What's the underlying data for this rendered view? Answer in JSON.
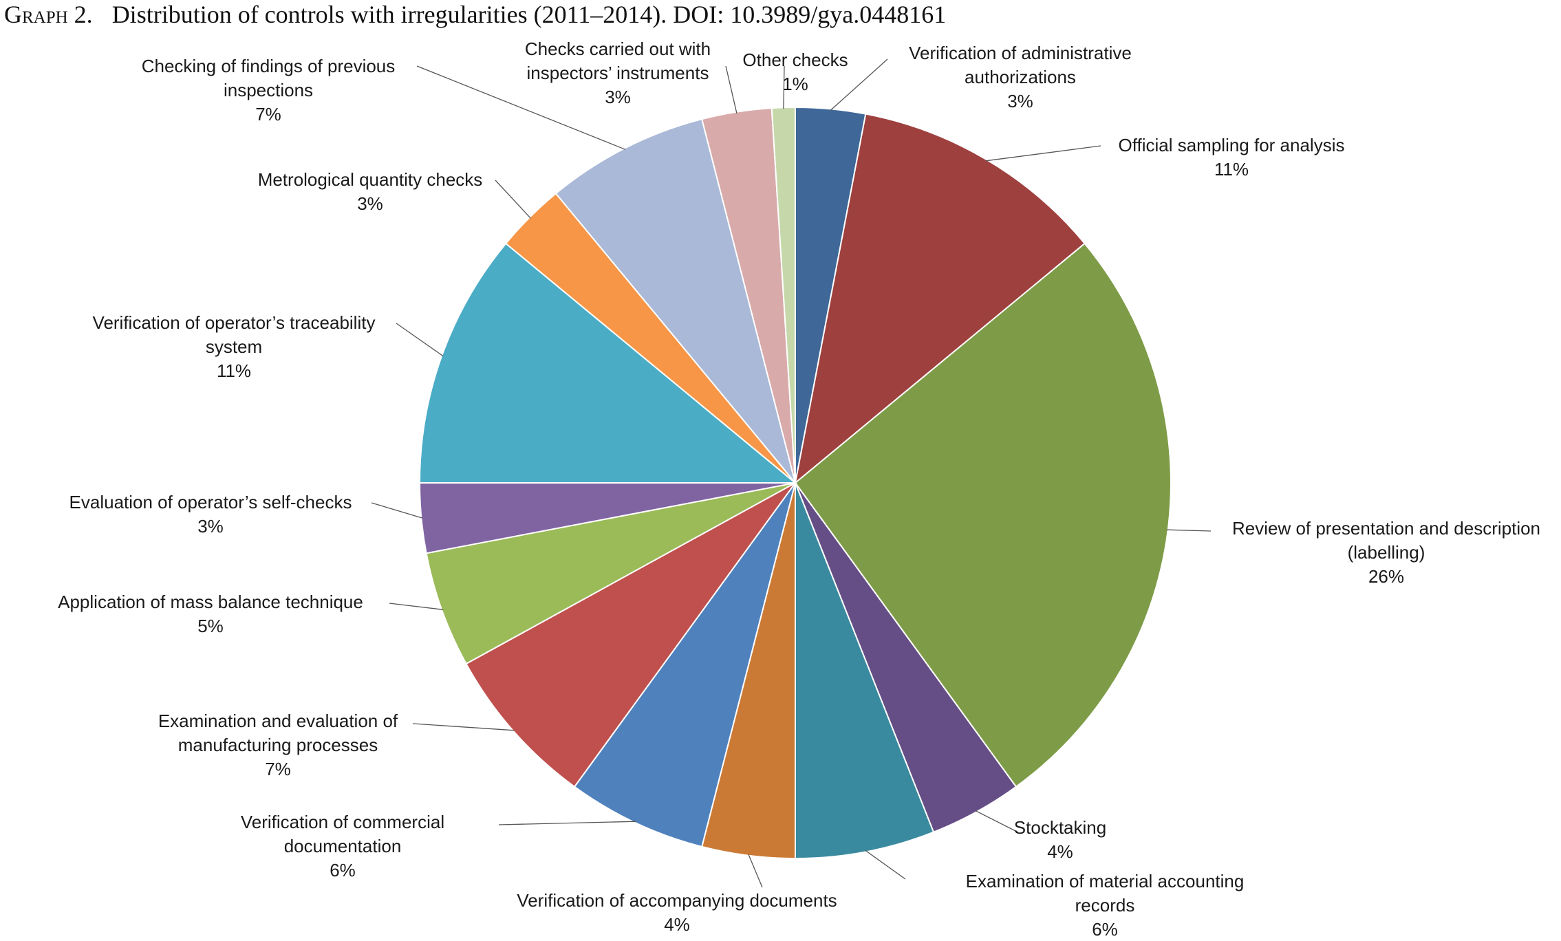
{
  "caption": {
    "label": "Graph 2.",
    "text": "Distribution of controls with irregularities (2011–2014). DOI: 10.3989/gya.0448161"
  },
  "chart_data": {
    "type": "pie",
    "unit": "%",
    "start": "12 o'clock",
    "direction": "clockwise",
    "slices": [
      {
        "label": [
          "Verification of administrative",
          "authorizations"
        ],
        "value": 3,
        "display": "3%",
        "color": "#3F6898"
      },
      {
        "label": [
          "Official sampling for analysis"
        ],
        "value": 11,
        "display": "11%",
        "color": "#9E403E"
      },
      {
        "label": [
          "Review of presentation and description",
          "(labelling)"
        ],
        "value": 26,
        "display": "26%",
        "color": "#7E9C47"
      },
      {
        "label": [
          "Stocktaking"
        ],
        "value": 4,
        "display": "4%",
        "color": "#654E85"
      },
      {
        "label": [
          "Examination of material accounting",
          "records"
        ],
        "value": 6,
        "display": "6%",
        "color": "#3A8A9F"
      },
      {
        "label": [
          "Verification of accompanying documents"
        ],
        "value": 4,
        "display": "4%",
        "color": "#CB7A35"
      },
      {
        "label": [
          "Verification of commercial",
          "documentation"
        ],
        "value": 6,
        "display": "6%",
        "color": "#4F81BD"
      },
      {
        "label": [
          "Examination and evaluation of",
          "manufacturing processes"
        ],
        "value": 7,
        "display": "7%",
        "color": "#C0504D"
      },
      {
        "label": [
          "Application of mass balance technique"
        ],
        "value": 5,
        "display": "5%",
        "color": "#9BBB59"
      },
      {
        "label": [
          "Evaluation of operator’s self-checks"
        ],
        "value": 3,
        "display": "3%",
        "color": "#8064A2"
      },
      {
        "label": [
          "Verification of operator’s traceability",
          "system"
        ],
        "value": 11,
        "display": "11%",
        "color": "#4BACC6"
      },
      {
        "label": [
          "Metrological quantity checks"
        ],
        "value": 3,
        "display": "3%",
        "color": "#F79646"
      },
      {
        "label": [
          "Checking of findings of previous",
          "inspections"
        ],
        "value": 7,
        "display": "7%",
        "color": "#AAB9D7"
      },
      {
        "label": [
          "Checks carried out with",
          "inspectors’ instruments"
        ],
        "value": 3,
        "display": "3%",
        "color": "#D9AAAA"
      },
      {
        "label": [
          "Other checks"
        ],
        "value": 1,
        "display": "1%",
        "color": "#C6D8A9"
      }
    ]
  }
}
